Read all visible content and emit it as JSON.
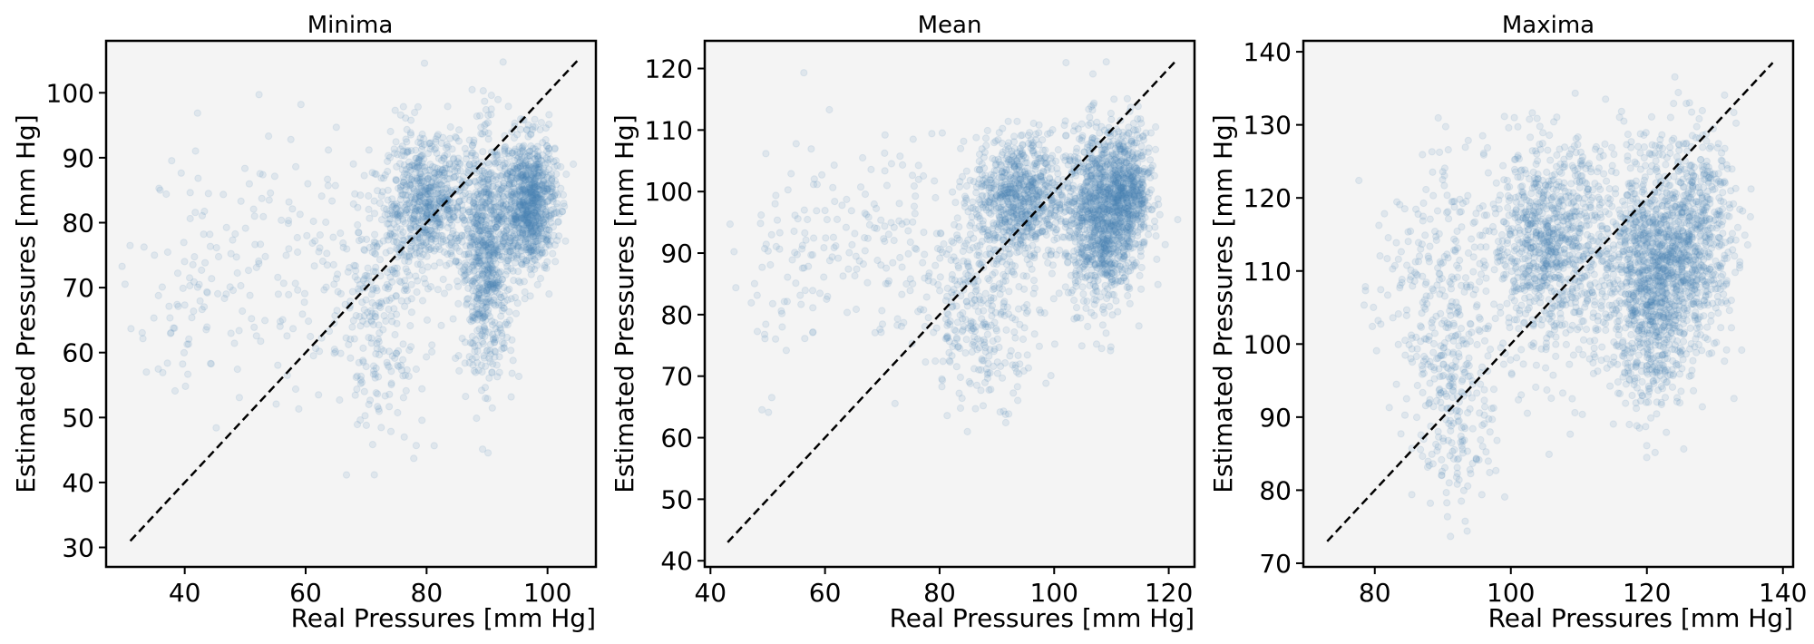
{
  "chart_data": [
    {
      "type": "scatter",
      "title": "Minima",
      "xlabel": "Real Pressures [mm Hg]",
      "ylabel": "Estimated Pressures [mm Hg]",
      "xlim": [
        27,
        108
      ],
      "ylim": [
        27,
        108
      ],
      "xticks": [
        40,
        60,
        80,
        100
      ],
      "yticks": [
        30,
        40,
        50,
        60,
        70,
        80,
        90,
        100
      ],
      "reference_line": {
        "style": "dashed",
        "color": "#000000",
        "from": [
          31,
          31
        ],
        "to": [
          105,
          105
        ]
      },
      "point_color": "#4682b4",
      "point_alpha": 0.12,
      "clusters": [
        {
          "x_mean": 80,
          "x_sd": 3.5,
          "y_mean": 83,
          "y_sd": 5,
          "count": 700
        },
        {
          "x_mean": 90,
          "x_sd": 2.2,
          "y_mean": 75,
          "y_sd": 9,
          "count": 800
        },
        {
          "x_mean": 97,
          "x_sd": 2.2,
          "y_mean": 83,
          "y_sd": 5,
          "count": 900
        },
        {
          "x_mean": 72,
          "x_sd": 4,
          "y_mean": 66,
          "y_sd": 9,
          "count": 250
        },
        {
          "x_mean": 55,
          "x_sd": 11,
          "y_mean": 74,
          "y_sd": 10,
          "count": 180
        },
        {
          "x_mean": 40,
          "x_sd": 3,
          "y_mean": 70,
          "y_sd": 10,
          "count": 40
        }
      ]
    },
    {
      "type": "scatter",
      "title": "Mean",
      "xlabel": "Real Pressures [mm Hg]",
      "ylabel": "Estimated Pressures [mm Hg]",
      "xlim": [
        39,
        124.5
      ],
      "ylim": [
        39,
        124.5
      ],
      "xticks": [
        40,
        60,
        80,
        100,
        120
      ],
      "yticks": [
        40,
        50,
        60,
        70,
        80,
        90,
        100,
        110,
        120
      ],
      "reference_line": {
        "style": "dashed",
        "color": "#000000",
        "from": [
          43,
          43
        ],
        "to": [
          121,
          121
        ]
      },
      "point_color": "#4682b4",
      "point_alpha": 0.12,
      "clusters": [
        {
          "x_mean": 94,
          "x_sd": 4,
          "y_mean": 99,
          "y_sd": 5,
          "count": 800
        },
        {
          "x_mean": 108,
          "x_sd": 3,
          "y_mean": 96,
          "y_sd": 7,
          "count": 1100
        },
        {
          "x_mean": 113,
          "x_sd": 2,
          "y_mean": 100,
          "y_sd": 5,
          "count": 500
        },
        {
          "x_mean": 88,
          "x_sd": 5,
          "y_mean": 80,
          "y_sd": 7,
          "count": 300
        },
        {
          "x_mean": 70,
          "x_sd": 11,
          "y_mean": 92,
          "y_sd": 9,
          "count": 200
        },
        {
          "x_mean": 52,
          "x_sd": 4,
          "y_mean": 85,
          "y_sd": 10,
          "count": 40
        }
      ]
    },
    {
      "type": "scatter",
      "title": "Maxima",
      "xlabel": "Real Pressures [mm Hg]",
      "ylabel": "Estimated Pressures [mm Hg]",
      "xlim": [
        69.5,
        141.5
      ],
      "ylim": [
        69.5,
        141.5
      ],
      "xticks": [
        80,
        100,
        120,
        140
      ],
      "yticks": [
        70,
        80,
        90,
        100,
        110,
        120,
        130,
        140
      ],
      "reference_line": {
        "style": "dashed",
        "color": "#000000",
        "from": [
          73,
          73
        ],
        "to": [
          138.5,
          138.5
        ]
      },
      "point_color": "#4682b4",
      "point_alpha": 0.12,
      "clusters": [
        {
          "x_mean": 105,
          "x_sd": 4,
          "y_mean": 114,
          "y_sd": 6,
          "count": 700
        },
        {
          "x_mean": 121,
          "x_sd": 3,
          "y_mean": 108,
          "y_sd": 8,
          "count": 1000
        },
        {
          "x_mean": 127,
          "x_sd": 3,
          "y_mean": 115,
          "y_sd": 7,
          "count": 600
        },
        {
          "x_mean": 92,
          "x_sd": 3,
          "y_mean": 93,
          "y_sd": 8,
          "count": 250
        },
        {
          "x_mean": 88,
          "x_sd": 4,
          "y_mean": 108,
          "y_sd": 9,
          "count": 200
        },
        {
          "x_mean": 113,
          "x_sd": 7,
          "y_mean": 112,
          "y_sd": 9,
          "count": 500
        }
      ]
    }
  ]
}
